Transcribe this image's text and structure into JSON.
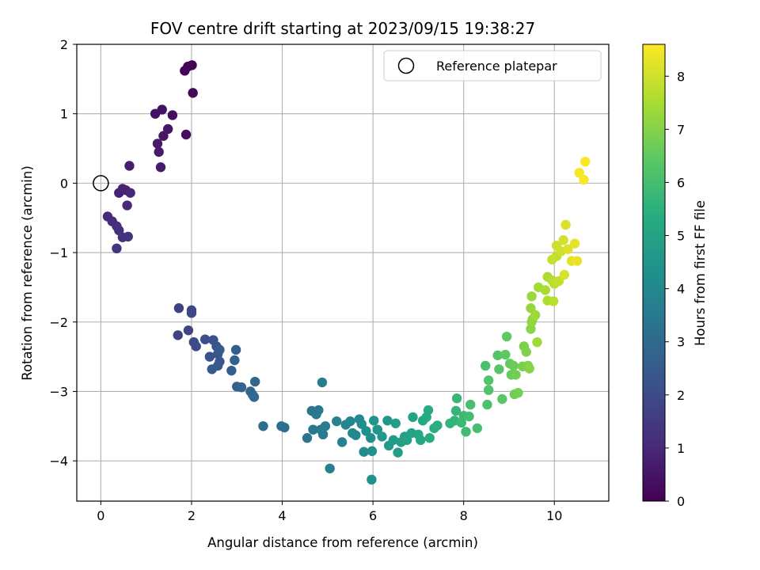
{
  "chart_data": {
    "type": "scatter",
    "title": "FOV centre drift starting at 2023/09/15 19:38:27",
    "xlabel": "Angular distance from reference (arcmin)",
    "ylabel": "Rotation from reference (arcmin)",
    "xlim": [
      -0.53,
      11.2
    ],
    "ylim": [
      -4.58,
      2.0
    ],
    "xticks": [
      0,
      2,
      4,
      6,
      8,
      10
    ],
    "yticks": [
      -4,
      -3,
      -2,
      -1,
      0,
      1,
      2
    ],
    "grid": true,
    "legend": {
      "position": "top-right",
      "entries": [
        "Reference platepar"
      ]
    },
    "reference_point": {
      "x": 0,
      "y": 0,
      "marker": "open-circle"
    },
    "colorbar": {
      "label": "Hours from first FF file",
      "colormap": "viridis",
      "range": [
        0,
        8.6
      ],
      "ticks": [
        0,
        1,
        2,
        3,
        4,
        5,
        6,
        7,
        8
      ]
    },
    "points": [
      [
        1.92,
        1.68,
        0.05
      ],
      [
        2.01,
        1.7,
        0.05
      ],
      [
        1.85,
        1.62,
        0.1
      ],
      [
        2.03,
        1.3,
        0.15
      ],
      [
        1.88,
        0.7,
        0.3
      ],
      [
        1.58,
        0.98,
        0.35
      ],
      [
        1.35,
        1.06,
        0.4
      ],
      [
        1.2,
        1.0,
        0.45
      ],
      [
        1.48,
        0.78,
        0.5
      ],
      [
        1.38,
        0.68,
        0.55
      ],
      [
        1.25,
        0.57,
        0.6
      ],
      [
        1.28,
        0.45,
        0.65
      ],
      [
        1.32,
        0.23,
        0.7
      ],
      [
        0.63,
        0.25,
        0.75
      ],
      [
        0.4,
        -0.14,
        0.8
      ],
      [
        0.48,
        -0.08,
        0.85
      ],
      [
        0.55,
        -0.1,
        0.9
      ],
      [
        0.65,
        -0.14,
        0.95
      ],
      [
        0.58,
        -0.32,
        1.0
      ],
      [
        0.15,
        -0.48,
        1.05
      ],
      [
        0.25,
        -0.55,
        1.1
      ],
      [
        0.35,
        -0.62,
        1.15
      ],
      [
        0.4,
        -0.68,
        1.2
      ],
      [
        0.48,
        -0.78,
        1.25
      ],
      [
        0.6,
        -0.77,
        1.3
      ],
      [
        0.35,
        -0.94,
        1.35
      ],
      [
        1.72,
        -1.8,
        1.7
      ],
      [
        1.7,
        -2.19,
        1.75
      ],
      [
        1.93,
        -2.12,
        1.8
      ],
      [
        2.0,
        -1.83,
        1.85
      ],
      [
        2.0,
        -1.87,
        1.9
      ],
      [
        2.05,
        -2.29,
        1.95
      ],
      [
        2.1,
        -2.35,
        2.0
      ],
      [
        2.3,
        -2.25,
        2.1
      ],
      [
        2.4,
        -2.5,
        2.15
      ],
      [
        2.48,
        -2.26,
        2.2
      ],
      [
        2.55,
        -2.35,
        2.25
      ],
      [
        2.58,
        -2.46,
        2.3
      ],
      [
        2.62,
        -2.57,
        2.35
      ],
      [
        2.58,
        -2.63,
        2.4
      ],
      [
        2.45,
        -2.68,
        2.45
      ],
      [
        2.62,
        -2.4,
        2.5
      ],
      [
        2.88,
        -2.7,
        2.55
      ],
      [
        2.98,
        -2.4,
        2.6
      ],
      [
        2.95,
        -2.55,
        2.65
      ],
      [
        3.0,
        -2.93,
        2.7
      ],
      [
        3.1,
        -2.94,
        2.75
      ],
      [
        3.3,
        -3.0,
        2.8
      ],
      [
        3.35,
        -3.05,
        2.85
      ],
      [
        3.4,
        -2.86,
        2.9
      ],
      [
        3.38,
        -3.08,
        2.95
      ],
      [
        3.58,
        -3.5,
        3.05
      ],
      [
        3.98,
        -3.5,
        3.1
      ],
      [
        4.05,
        -3.52,
        3.15
      ],
      [
        4.55,
        -3.67,
        3.3
      ],
      [
        4.65,
        -3.28,
        3.35
      ],
      [
        4.68,
        -3.55,
        3.4
      ],
      [
        4.75,
        -3.33,
        3.45
      ],
      [
        4.8,
        -3.27,
        3.5
      ],
      [
        4.85,
        -3.55,
        3.55
      ],
      [
        4.9,
        -3.62,
        3.6
      ],
      [
        4.88,
        -2.87,
        3.65
      ],
      [
        4.95,
        -3.5,
        3.7
      ],
      [
        5.05,
        -4.11,
        3.75
      ],
      [
        5.2,
        -3.43,
        3.8
      ],
      [
        5.32,
        -3.73,
        3.85
      ],
      [
        5.4,
        -3.48,
        3.9
      ],
      [
        5.5,
        -3.43,
        3.95
      ],
      [
        5.55,
        -3.6,
        4.0
      ],
      [
        5.62,
        -3.63,
        4.05
      ],
      [
        5.7,
        -3.4,
        4.1
      ],
      [
        5.75,
        -3.47,
        4.15
      ],
      [
        5.8,
        -3.87,
        4.2
      ],
      [
        5.85,
        -3.57,
        4.25
      ],
      [
        5.95,
        -3.67,
        4.3
      ],
      [
        5.98,
        -3.86,
        4.35
      ],
      [
        5.97,
        -4.27,
        4.4
      ],
      [
        6.02,
        -3.42,
        4.45
      ],
      [
        6.1,
        -3.55,
        4.5
      ],
      [
        6.2,
        -3.65,
        4.55
      ],
      [
        6.32,
        -3.42,
        4.6
      ],
      [
        6.35,
        -3.78,
        4.65
      ],
      [
        6.45,
        -3.7,
        4.7
      ],
      [
        6.5,
        -3.46,
        4.75
      ],
      [
        6.55,
        -3.88,
        4.8
      ],
      [
        6.62,
        -3.73,
        4.85
      ],
      [
        6.7,
        -3.65,
        4.9
      ],
      [
        6.75,
        -3.7,
        4.95
      ],
      [
        6.85,
        -3.6,
        5.0
      ],
      [
        6.88,
        -3.37,
        5.05
      ],
      [
        7.0,
        -3.62,
        5.1
      ],
      [
        7.05,
        -3.7,
        5.15
      ],
      [
        7.1,
        -3.42,
        5.2
      ],
      [
        7.18,
        -3.37,
        5.25
      ],
      [
        7.22,
        -3.27,
        5.3
      ],
      [
        7.25,
        -3.67,
        5.35
      ],
      [
        7.35,
        -3.53,
        5.4
      ],
      [
        7.42,
        -3.49,
        5.45
      ],
      [
        7.7,
        -3.46,
        5.6
      ],
      [
        7.8,
        -3.42,
        5.65
      ],
      [
        7.83,
        -3.28,
        5.7
      ],
      [
        7.85,
        -3.1,
        5.75
      ],
      [
        7.95,
        -3.45,
        5.8
      ],
      [
        8.0,
        -3.35,
        5.85
      ],
      [
        8.05,
        -3.58,
        5.9
      ],
      [
        8.12,
        -3.36,
        5.95
      ],
      [
        8.15,
        -3.19,
        6.0
      ],
      [
        8.3,
        -3.53,
        6.05
      ],
      [
        8.48,
        -2.63,
        6.1
      ],
      [
        8.52,
        -3.19,
        6.15
      ],
      [
        8.55,
        -2.98,
        6.2
      ],
      [
        8.55,
        -2.84,
        6.25
      ],
      [
        8.75,
        -2.48,
        6.3
      ],
      [
        8.78,
        -2.68,
        6.35
      ],
      [
        8.85,
        -3.11,
        6.4
      ],
      [
        8.92,
        -2.47,
        6.45
      ],
      [
        8.95,
        -2.21,
        6.5
      ],
      [
        9.02,
        -2.6,
        6.55
      ],
      [
        9.05,
        -2.76,
        6.6
      ],
      [
        9.1,
        -2.63,
        6.65
      ],
      [
        9.12,
        -3.04,
        6.7
      ],
      [
        9.15,
        -2.76,
        6.75
      ],
      [
        9.2,
        -3.02,
        6.8
      ],
      [
        9.3,
        -2.64,
        6.85
      ],
      [
        9.33,
        -2.35,
        6.9
      ],
      [
        9.38,
        -2.43,
        6.95
      ],
      [
        9.42,
        -2.63,
        7.0
      ],
      [
        9.45,
        -2.67,
        7.05
      ],
      [
        9.48,
        -2.1,
        7.1
      ],
      [
        9.5,
        -2.0,
        7.15
      ],
      [
        9.52,
        -1.96,
        7.2
      ],
      [
        9.48,
        -1.8,
        7.25
      ],
      [
        9.5,
        -1.63,
        7.3
      ],
      [
        9.58,
        -1.9,
        7.35
      ],
      [
        9.62,
        -2.29,
        7.4
      ],
      [
        9.65,
        -1.5,
        7.45
      ],
      [
        9.8,
        -1.54,
        7.5
      ],
      [
        9.85,
        -1.35,
        7.55
      ],
      [
        9.85,
        -1.69,
        7.6
      ],
      [
        9.95,
        -1.4,
        7.65
      ],
      [
        9.98,
        -1.7,
        7.7
      ],
      [
        10.0,
        -1.45,
        7.75
      ],
      [
        10.05,
        -1.05,
        7.8
      ],
      [
        10.1,
        -1.41,
        7.85
      ],
      [
        9.95,
        -1.1,
        7.9
      ],
      [
        10.05,
        -0.9,
        7.95
      ],
      [
        10.15,
        -0.98,
        8.0
      ],
      [
        10.2,
        -0.82,
        8.05
      ],
      [
        10.22,
        -1.32,
        8.1
      ],
      [
        10.25,
        -0.6,
        8.15
      ],
      [
        10.3,
        -0.95,
        8.2
      ],
      [
        10.38,
        -1.12,
        8.25
      ],
      [
        10.45,
        -0.87,
        8.3
      ],
      [
        10.5,
        -1.12,
        8.35
      ],
      [
        10.55,
        0.15,
        8.5
      ],
      [
        10.65,
        0.05,
        8.55
      ],
      [
        10.68,
        0.31,
        8.6
      ]
    ]
  }
}
